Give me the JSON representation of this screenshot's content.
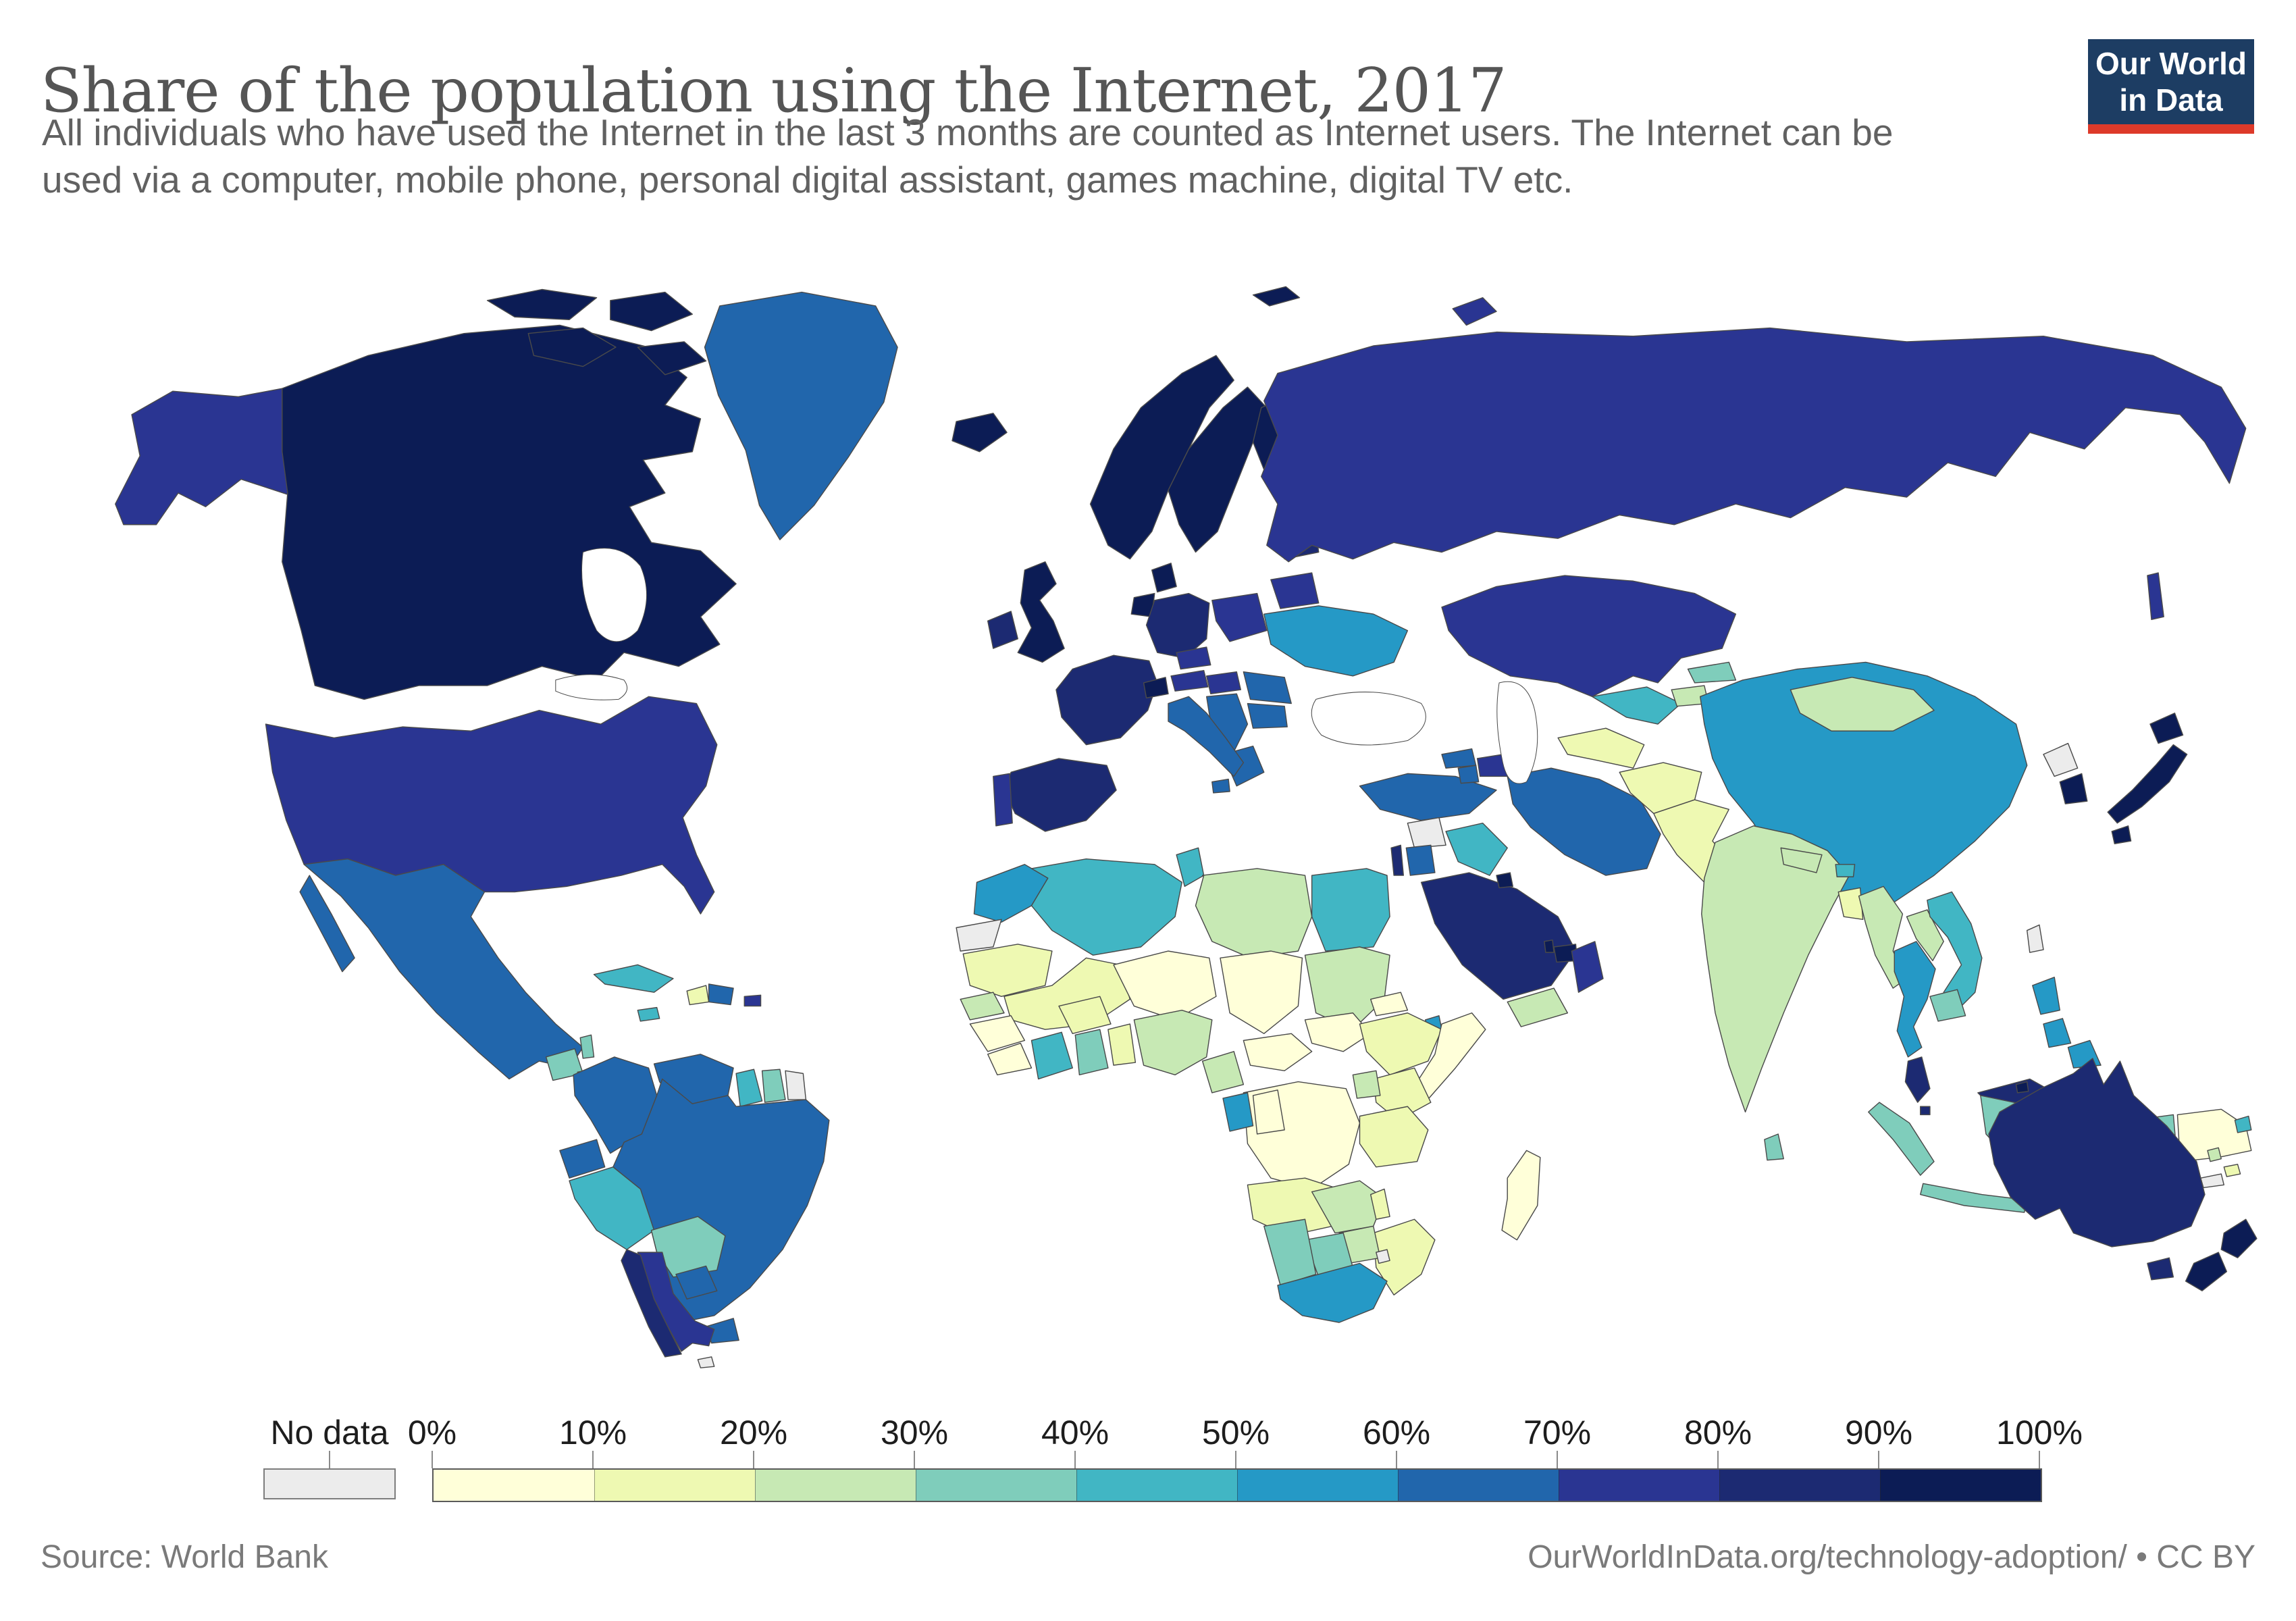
{
  "header": {
    "title": "Share of the population using the Internet, 2017",
    "subtitle_line1": "All individuals who have used the Internet in the last 3 months are counted as Internet users. The Internet can be",
    "subtitle_line2": "used via a computer, mobile phone, personal digital assistant, games machine, digital TV etc.",
    "logo": {
      "line1": "Our World",
      "line2": "in Data",
      "bg_color": "#1d3d63",
      "stripe_color": "#dd3a2a"
    }
  },
  "footer": {
    "source": "Source: World Bank",
    "credit": "OurWorldInData.org/technology-adoption/ • CC BY"
  },
  "chart_data": {
    "type": "choropleth_map",
    "title": "Share of the population using the Internet",
    "year": 2017,
    "unit": "% of population using the Internet",
    "legend": {
      "no_data_label": "No data",
      "no_data_color": "#ececec",
      "tick_labels": [
        "0%",
        "10%",
        "20%",
        "30%",
        "40%",
        "50%",
        "60%",
        "70%",
        "80%",
        "90%",
        "100%"
      ],
      "colors": [
        "#ffffd9",
        "#eef9b2",
        "#c7e9b4",
        "#7fcdbb",
        "#41b6c4",
        "#2599c6",
        "#2166ac",
        "#2a3592",
        "#1c2a72",
        "#0c1c55"
      ]
    },
    "countries": {
      "Canada": "90-100%",
      "United States": "70-80%",
      "Greenland": "60-70%",
      "Iceland": "90-100%",
      "Mexico": "60-70%",
      "Guatemala": "30-40%",
      "Belize": "30-40%",
      "Honduras": "20-30%",
      "Nicaragua": "20-30%",
      "Costa Rica": "70-80%",
      "Panama": "60-70%",
      "Cuba": "40-50%",
      "Jamaica": "40-50%",
      "Haiti": "10-20%",
      "Dominican Republic": "60-70%",
      "Puerto Rico": "70-80%",
      "Colombia": "60-70%",
      "Venezuela": "60-70%",
      "Guyana": "40-50%",
      "Suriname": "30-40%",
      "French Guiana": "No data",
      "Ecuador": "60-70%",
      "Peru": "40-50%",
      "Bolivia": "30-40%",
      "Brazil": "60-70%",
      "Paraguay": "60-70%",
      "Uruguay": "60-70%",
      "Argentina": "70-80%",
      "Chile": "80-90%",
      "Falkland Islands": "No data",
      "United Kingdom": "90-100%",
      "Ireland": "80-90%",
      "Norway": "90-100%",
      "Sweden": "90-100%",
      "Finland": "90-100%",
      "Denmark": "90-100%",
      "Germany": "80-90%",
      "Netherlands": "90-100%",
      "France": "80-90%",
      "Spain": "80-90%",
      "Portugal": "70-80%",
      "Switzerland": "90-100%",
      "Austria": "70-80%",
      "Czechia": "70-80%",
      "Poland": "70-80%",
      "Baltic states": "80-90%",
      "Belarus": "70-80%",
      "Ukraine": "50-60%",
      "Hungary": "70-80%",
      "Romania": "60-70%",
      "Serbia": "60-70%",
      "Bulgaria": "60-70%",
      "Greece": "60-70%",
      "Italy": "60-70%",
      "Russia": "70-80%",
      "Turkey": "60-70%",
      "Georgia": "60-70%",
      "Armenia": "60-70%",
      "Azerbaijan": "70-80%",
      "Syria": "No data",
      "Israel": "80-90%",
      "Jordan": "60-70%",
      "Iraq": "40-50%",
      "Saudi Arabia": "80-90%",
      "Kuwait": "90-100%",
      "Qatar": "90-100%",
      "United Arab Emirates": "90-100%",
      "Oman": "70-80%",
      "Yemen": "20-30%",
      "Iran": "60-70%",
      "Turkmenistan": "10-20%",
      "Uzbekistan": "40-50%",
      "Kazakhstan": "70-80%",
      "Kyrgyzstan": "30-40%",
      "Tajikistan": "20-30%",
      "Afghanistan": "10-20%",
      "Pakistan": "10-20%",
      "India": "20-30%",
      "Nepal": "20-30%",
      "Bhutan": "40-50%",
      "Bangladesh": "10-20%",
      "Sri Lanka": "30-40%",
      "China": "50-60%",
      "Mongolia": "20-30%",
      "North Korea": "No data",
      "South Korea": "90-100%",
      "Japan": "90-100%",
      "Taiwan": "No data",
      "Myanmar": "20-30%",
      "Laos": "20-30%",
      "Thailand": "50-60%",
      "Vietnam": "40-50%",
      "Cambodia": "30-40%",
      "Malaysia": "80-90%",
      "Singapore": "80-90%",
      "Brunei": "90-100%",
      "Indonesia": "30-40%",
      "Philippines": "50-60%",
      "Papua New Guinea": "0-10%",
      "Australia": "80-90%",
      "New Zealand": "90-100%",
      "Fiji": "40-50%",
      "Vanuatu": "20-30%",
      "New Caledonia": "No data",
      "Solomon Islands": "10-20%",
      "French Southern Territories": "No data",
      "Morocco": "50-60%",
      "Western Sahara": "No data",
      "Algeria": "40-50%",
      "Tunisia": "40-50%",
      "Libya": "20-30%",
      "Egypt": "40-50%",
      "Sudan": "20-30%",
      "Eritrea": "0-10%",
      "Djibouti": "50-60%",
      "Ethiopia": "10-20%",
      "Somalia": "0-10%",
      "Mauritania": "10-20%",
      "Mali": "10-20%",
      "Niger": "0-10%",
      "Chad": "0-10%",
      "Senegal": "20-30%",
      "Guinea": "0-10%",
      "Liberia": "0-10%",
      "Cote d'Ivoire": "40-50%",
      "Ghana": "30-40%",
      "Burkina Faso": "10-20%",
      "Benin": "10-20%",
      "Nigeria": "20-30%",
      "Cameroon": "20-30%",
      "Central African Republic": "0-10%",
      "South Sudan": "0-10%",
      "Kenya": "10-20%",
      "Uganda": "20-30%",
      "Democratic Republic of Congo": "0-10%",
      "Congo": "0-10%",
      "Gabon": "50-60%",
      "Angola": "10-20%",
      "Zambia": "20-30%",
      "Tanzania": "10-20%",
      "Malawi": "10-20%",
      "Mozambique": "10-20%",
      "Zimbabwe": "20-30%",
      "Botswana": "30-40%",
      "Namibia": "30-40%",
      "South Africa": "50-60%",
      "Madagascar": "0-10%"
    }
  }
}
